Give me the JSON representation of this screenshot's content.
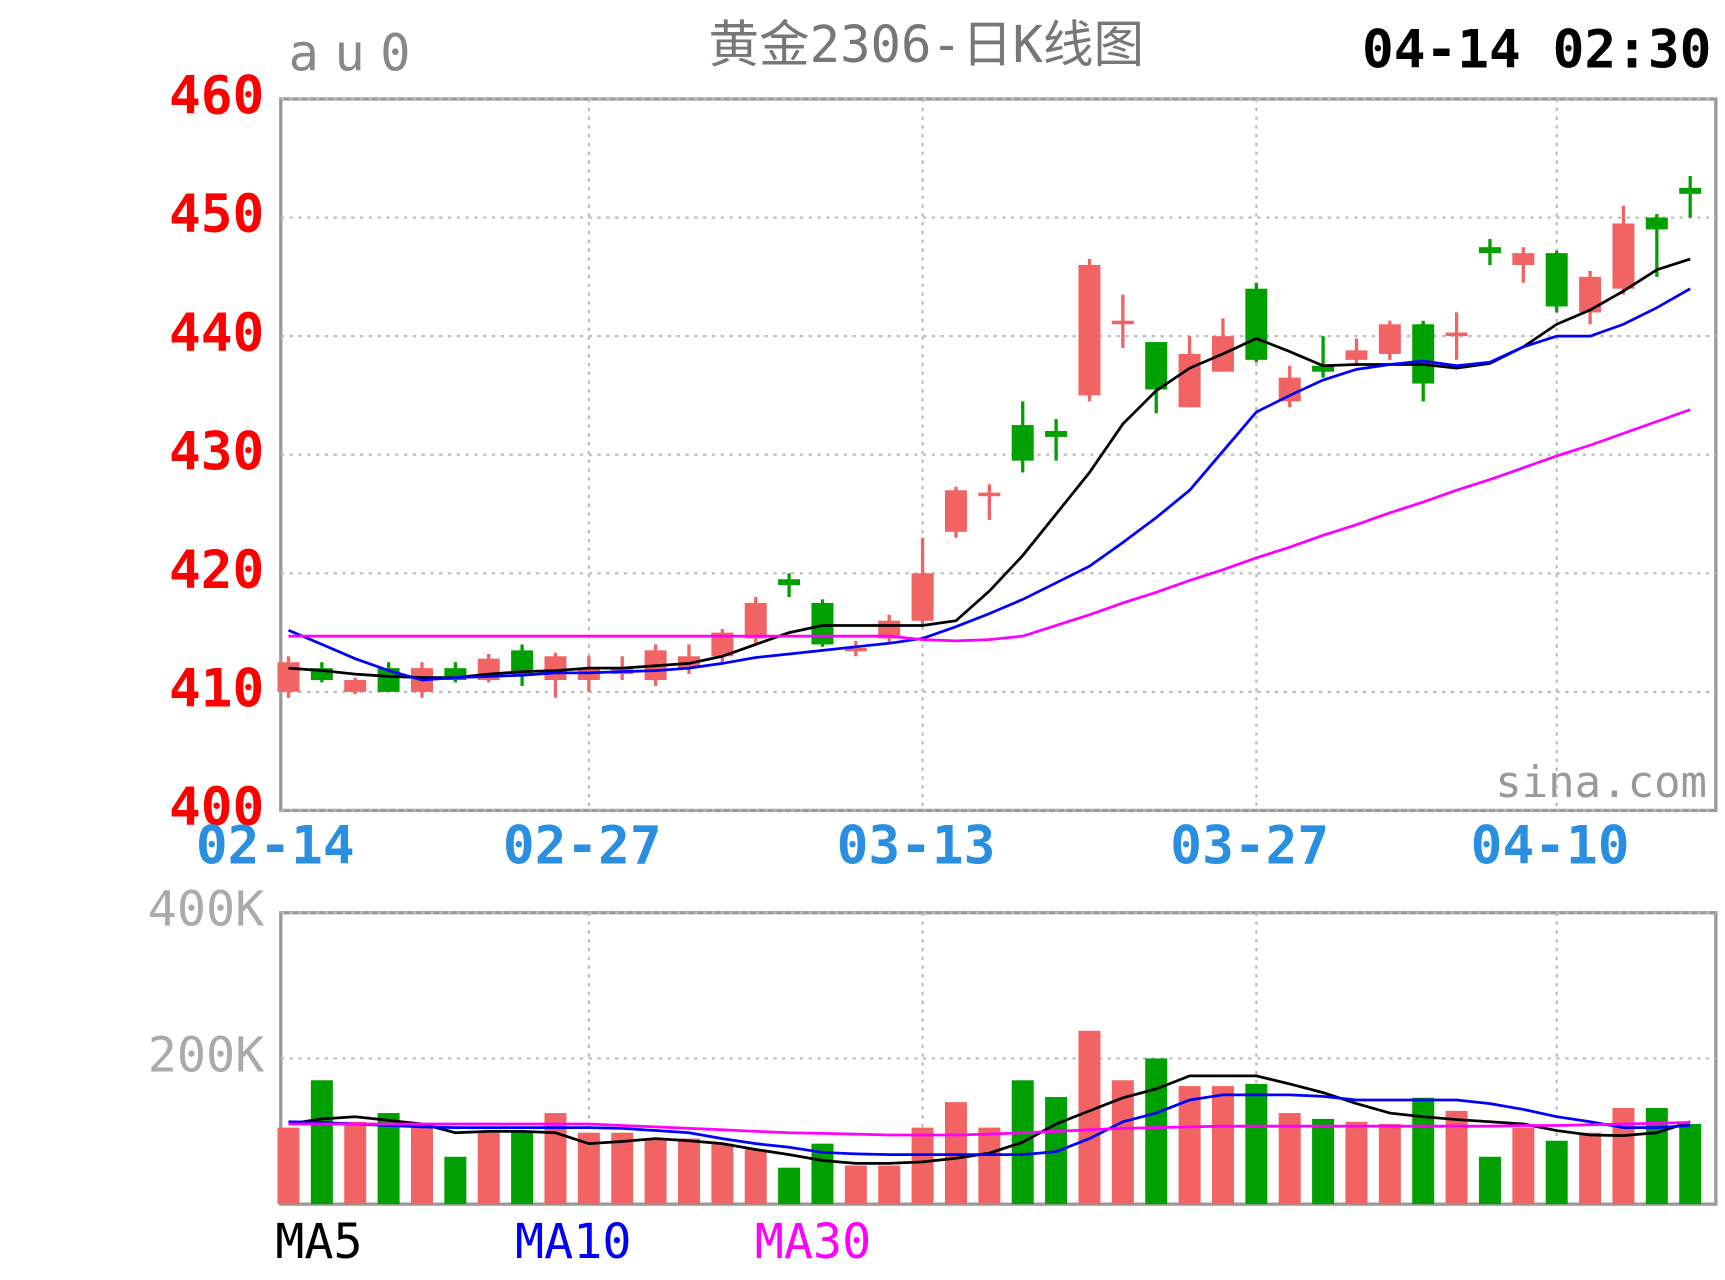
{
  "chart_data": [
    {
      "type": "candlestick",
      "symbol": "au0",
      "title": "黄金2306-日K线图",
      "timestamp": "04-14 02:30",
      "watermark": "sina.com",
      "categories": [
        "02-14",
        null,
        null,
        null,
        null,
        null,
        null,
        null,
        null,
        "02-27",
        null,
        null,
        null,
        null,
        null,
        null,
        null,
        null,
        null,
        "03-13",
        null,
        null,
        null,
        null,
        null,
        null,
        null,
        null,
        null,
        "03-27",
        null,
        null,
        null,
        null,
        null,
        null,
        null,
        null,
        "04-10",
        null,
        null,
        null,
        null
      ],
      "open": [
        410,
        412,
        410,
        412,
        410,
        412,
        411,
        413.5,
        411,
        411,
        411.5,
        411,
        412,
        413,
        414.5,
        419.5,
        417.5,
        413.5,
        414.5,
        416,
        423.5,
        426.5,
        432.5,
        432,
        435,
        441,
        439.5,
        434,
        437,
        444,
        434.5,
        437.5,
        438,
        438.5,
        441,
        440,
        447.5,
        446,
        447,
        442,
        444,
        450,
        452.5
      ],
      "high": [
        413,
        412.5,
        411.2,
        412.5,
        412.5,
        412.5,
        413.2,
        414,
        413.3,
        413,
        413,
        414,
        414,
        415.3,
        418,
        420,
        417.8,
        414.3,
        416.5,
        423,
        427.3,
        427.5,
        434.5,
        433,
        446.5,
        443.5,
        439.5,
        440,
        441.5,
        444.5,
        437.5,
        440,
        439.8,
        441.3,
        441.3,
        442,
        448.2,
        447.5,
        447.2,
        445.5,
        451,
        450.3,
        453.5
      ],
      "low": [
        409.5,
        410.8,
        409.8,
        410,
        409.5,
        410.8,
        410.8,
        410.5,
        409.5,
        410,
        411,
        410.5,
        411.5,
        412.5,
        414,
        418,
        413.8,
        413,
        414,
        415.5,
        423,
        424.5,
        428.5,
        429.5,
        434.5,
        439,
        433.5,
        434,
        437,
        437.8,
        434,
        436.5,
        437.5,
        438,
        434.5,
        438,
        446,
        444.5,
        442,
        441,
        443.5,
        445,
        450
      ],
      "close": [
        412.5,
        411,
        411,
        410,
        412,
        411,
        412.8,
        411.5,
        413,
        412,
        412,
        413.5,
        413,
        415,
        417.5,
        419,
        414,
        413.7,
        416,
        420,
        427,
        426.8,
        429.5,
        431.5,
        446,
        441.3,
        435.5,
        438.5,
        440,
        438,
        436.5,
        437,
        438.8,
        441,
        436,
        440.3,
        447,
        447,
        442.5,
        445,
        449.5,
        449,
        452
      ],
      "up_color": "#f26363",
      "down_color": "#00a000",
      "ylim": [
        400,
        460
      ],
      "yticks": [
        400,
        410,
        420,
        430,
        440,
        450,
        460
      ],
      "grid": true,
      "series": [
        {
          "name": "MA5",
          "color": "#000000",
          "values": [
            412,
            411.8,
            411.5,
            411.3,
            411.2,
            411.2,
            411.5,
            411.7,
            411.8,
            412,
            412,
            412.2,
            412.4,
            413,
            414,
            415,
            415.6,
            415.6,
            415.6,
            415.6,
            416,
            418.5,
            421.5,
            425,
            428.5,
            432.6,
            435.4,
            437.3,
            438.5,
            439.8,
            438.7,
            437.5,
            437.6,
            437.6,
            437.6,
            437.3,
            437.7,
            439.1,
            441,
            442.2,
            443.8,
            445.6,
            446.5
          ]
        },
        {
          "name": "MA10",
          "color": "#0000ff",
          "values": [
            415.2,
            414,
            412.8,
            411.8,
            411,
            411.2,
            411.3,
            411.4,
            411.6,
            411.6,
            411.7,
            411.8,
            412,
            412.4,
            412.9,
            413.2,
            413.5,
            413.8,
            414.1,
            414.5,
            415.5,
            416.6,
            417.8,
            419.2,
            420.6,
            422.6,
            424.7,
            427,
            430.3,
            433.6,
            435,
            436.3,
            437.2,
            437.6,
            437.9,
            437.5,
            437.8,
            439.1,
            440,
            440,
            441,
            442.4,
            444
          ]
        },
        {
          "name": "MA30",
          "color": "#ff00ff",
          "values": [
            414.7,
            414.7,
            414.7,
            414.7,
            414.7,
            414.7,
            414.7,
            414.7,
            414.7,
            414.7,
            414.7,
            414.7,
            414.7,
            414.7,
            414.7,
            414.7,
            414.7,
            414.7,
            414.7,
            414.4,
            414.3,
            414.4,
            414.7,
            415.6,
            416.5,
            417.5,
            418.4,
            419.4,
            420.3,
            421.3,
            422.2,
            423.2,
            424.1,
            425.1,
            426,
            427,
            427.9,
            428.9,
            429.9,
            430.8,
            431.8,
            432.8,
            433.8
          ]
        }
      ]
    },
    {
      "type": "volume",
      "values": [
        105000,
        170000,
        113000,
        125000,
        110000,
        65000,
        98000,
        100000,
        125000,
        98000,
        98000,
        90000,
        90000,
        83000,
        75000,
        50000,
        83000,
        53000,
        53000,
        105000,
        140000,
        105000,
        170000,
        147000,
        238000,
        170000,
        200000,
        162000,
        162000,
        165000,
        125000,
        117000,
        113000,
        110000,
        146000,
        128000,
        65000,
        105000,
        87000,
        98000,
        132000,
        132000,
        110000
      ],
      "ylim": [
        0,
        400000
      ],
      "yticks": [
        {
          "value": 200000,
          "label": "200K"
        },
        {
          "value": 400000,
          "label": "400K"
        }
      ],
      "grid": true,
      "series": [
        {
          "color": "#000000",
          "values": [
            110000,
            117000,
            120000,
            115000,
            110000,
            98000,
            100000,
            100000,
            98000,
            83000,
            86000,
            90000,
            87000,
            83000,
            75000,
            68000,
            60000,
            56000,
            56000,
            58000,
            63000,
            70000,
            85000,
            110000,
            128000,
            146000,
            158000,
            176000,
            176000,
            176000,
            165000,
            153000,
            138000,
            125000,
            120000,
            116000,
            113000,
            110000,
            101000,
            95000,
            94000,
            98000,
            113000
          ]
        },
        {
          "color": "#0000ff",
          "values": [
            113000,
            112000,
            110000,
            108000,
            106000,
            105000,
            105000,
            105000,
            105000,
            105000,
            104000,
            101000,
            98000,
            90000,
            83000,
            78000,
            71000,
            69000,
            68000,
            68000,
            68000,
            68000,
            68000,
            72000,
            90000,
            113000,
            125000,
            143000,
            150000,
            150000,
            150000,
            148000,
            143000,
            143000,
            143000,
            143000,
            138000,
            130000,
            120000,
            113000,
            105000,
            105000,
            108000
          ]
        },
        {
          "color": "#ff00ff",
          "values": [
            110000,
            110000,
            110000,
            110000,
            110000,
            110000,
            110000,
            110000,
            110000,
            110000,
            108000,
            106000,
            104000,
            102000,
            100000,
            98000,
            97000,
            96000,
            95000,
            95000,
            95000,
            96000,
            98000,
            100000,
            102000,
            104000,
            105000,
            106000,
            107000,
            107000,
            107000,
            107000,
            107000,
            107000,
            107000,
            107000,
            107000,
            108000,
            108000,
            109000,
            110000,
            111000,
            112000
          ]
        }
      ]
    }
  ]
}
